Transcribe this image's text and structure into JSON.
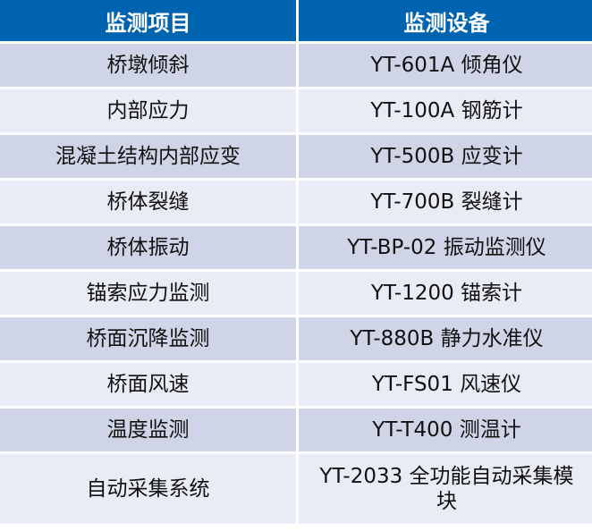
{
  "table": {
    "headers": [
      "监测项目",
      "监测设备"
    ],
    "rows": [
      [
        "桥墩倾斜",
        "YT-601A 倾角仪"
      ],
      [
        "内部应力",
        "YT-100A 钢筋计"
      ],
      [
        "混凝土结构内部应变",
        "YT-500B 应变计"
      ],
      [
        "桥体裂缝",
        "YT-700B 裂缝计"
      ],
      [
        "桥体振动",
        "YT-BP-02 振动监测仪"
      ],
      [
        "锚索应力监测",
        "YT-1200 锚索计"
      ],
      [
        "桥面沉降监测",
        "YT-880B 静力水准仪"
      ],
      [
        "桥面风速",
        "YT-FS01 风速仪"
      ],
      [
        "温度监测",
        "YT-T400 测温计"
      ],
      [
        "自动采集系统",
        "YT-2033 全功能自动采集模块"
      ]
    ]
  },
  "colors": {
    "header": "#0063B0",
    "row_odd": "#CFD5E6",
    "row_even": "#E9EBF5"
  }
}
